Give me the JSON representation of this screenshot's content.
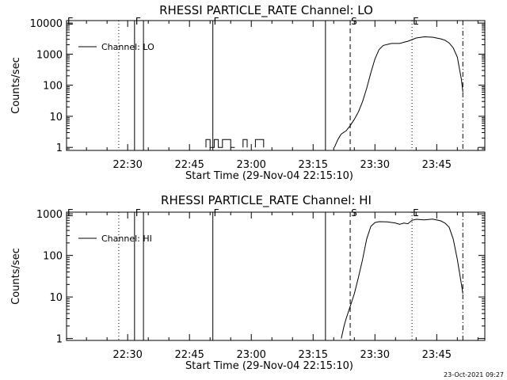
{
  "footer": "23-Oct-2021 09:27",
  "chart_data": [
    {
      "type": "line",
      "title": "RHESSI PARTICLE_RATE Channel: LO",
      "xlabel": "Start Time (29-Nov-04 22:15:10)",
      "ylabel": "Counts/sec",
      "yscale": "log",
      "ylim": [
        0.8,
        12000
      ],
      "xlim": [
        "22:15:10",
        "23:56:40"
      ],
      "x_ticks": [
        "22:30",
        "22:45",
        "23:00",
        "23:15",
        "23:30",
        "23:45"
      ],
      "y_ticks": [
        "1",
        "10",
        "100",
        "1000",
        "10000"
      ],
      "legend": {
        "label": "Channel: LO",
        "position": "top-left"
      },
      "markers": [
        {
          "label": "E",
          "time": "22:15:10",
          "style": "dotted"
        },
        {
          "label": "F",
          "time": "22:31:40",
          "style": "solid"
        },
        {
          "label": "F",
          "time": "22:50:40",
          "style": "solid"
        },
        {
          "label": "S",
          "time": "23:24:00",
          "style": "dashed"
        },
        {
          "label": "E",
          "time": "23:39:00",
          "style": "dotted"
        }
      ],
      "vlines": [
        {
          "time": "22:27:50",
          "style": "dotted"
        },
        {
          "time": "22:31:40",
          "style": "solid"
        },
        {
          "time": "22:33:50",
          "style": "solid"
        },
        {
          "time": "22:50:40",
          "style": "solid"
        },
        {
          "time": "23:18:00",
          "style": "solid"
        },
        {
          "time": "23:24:00",
          "style": "dashed"
        },
        {
          "time": "23:39:00",
          "style": "dotted"
        },
        {
          "time": "23:51:20",
          "style": "dashdot"
        }
      ],
      "series": [
        {
          "segments": [
            {
              "x": [
                "22:49:00",
                "22:49:00",
                "22:50:00",
                "22:50:00",
                "22:51:00",
                "22:51:00",
                "22:52:00",
                "22:52:00",
                "22:53:00",
                "22:53:00",
                "22:54:00",
                "22:54:00",
                "22:55:00",
                "22:55:00",
                "22:56:00",
                "22:56:00"
              ],
              "y": [
                1,
                1.8,
                1.8,
                1,
                1,
                1.8,
                1.8,
                1,
                1,
                1.8,
                1.8,
                1.8,
                1.8,
                1,
                1,
                1
              ]
            },
            {
              "x": [
                "22:58:00",
                "22:58:00",
                "22:59:00",
                "22:59:00"
              ],
              "y": [
                1,
                1.8,
                1.8,
                1
              ]
            },
            {
              "x": [
                "23:01:00",
                "23:01:00",
                "23:03:00",
                "23:03:00"
              ],
              "y": [
                1,
                1.8,
                1.8,
                1
              ]
            },
            {
              "x": [
                "23:20:10",
                "23:21:00",
                "23:21:00",
                "23:21:40",
                "23:22:00",
                "23:23:00",
                "23:24:00",
                "23:25:00",
                "23:26:00",
                "23:27:00",
                "23:28:00",
                "23:29:00",
                "23:30:00",
                "23:31:00",
                "23:32:00",
                "23:34:00",
                "23:36:00",
                "23:37:00",
                "23:38:00",
                "23:40:00",
                "23:42:00",
                "23:44:00",
                "23:46:00",
                "23:47:00",
                "23:48:00",
                "23:49:00",
                "23:50:00",
                "23:51:00",
                "23:51:20"
              ],
              "y": [
                1,
                1.8,
                1.8,
                2.5,
                2.8,
                3.4,
                5,
                8,
                14,
                30,
                80,
                250,
                700,
                1400,
                1900,
                2200,
                2200,
                2400,
                2600,
                3300,
                3600,
                3500,
                3100,
                2800,
                2300,
                1600,
                800,
                150,
                60
              ]
            }
          ]
        }
      ]
    },
    {
      "type": "line",
      "title": "RHESSI PARTICLE_RATE Channel: HI",
      "xlabel": "Start Time (29-Nov-04 22:15:10)",
      "ylabel": "Counts/sec",
      "yscale": "log",
      "ylim": [
        0.9,
        1100
      ],
      "xlim": [
        "22:15:10",
        "23:56:40"
      ],
      "x_ticks": [
        "22:30",
        "22:45",
        "23:00",
        "23:15",
        "23:30",
        "23:45"
      ],
      "y_ticks": [
        "1",
        "10",
        "100",
        "1000"
      ],
      "legend": {
        "label": "Channel: HI",
        "position": "top-left"
      },
      "markers": [
        {
          "label": "E",
          "time": "22:15:10",
          "style": "dotted"
        },
        {
          "label": "F",
          "time": "22:31:40",
          "style": "solid"
        },
        {
          "label": "F",
          "time": "22:50:40",
          "style": "solid"
        },
        {
          "label": "S",
          "time": "23:24:00",
          "style": "dashed"
        },
        {
          "label": "E",
          "time": "23:39:00",
          "style": "dotted"
        }
      ],
      "vlines": [
        {
          "time": "22:27:50",
          "style": "dotted"
        },
        {
          "time": "22:31:40",
          "style": "solid"
        },
        {
          "time": "22:33:50",
          "style": "solid"
        },
        {
          "time": "22:50:40",
          "style": "solid"
        },
        {
          "time": "23:18:00",
          "style": "solid"
        },
        {
          "time": "23:24:00",
          "style": "dashed"
        },
        {
          "time": "23:39:00",
          "style": "dotted"
        },
        {
          "time": "23:51:20",
          "style": "dashdot"
        }
      ],
      "series": [
        {
          "segments": [
            {
              "x": [
                "23:21:50",
                "23:22:30",
                "23:23:00",
                "23:24:00",
                "23:25:00",
                "23:26:00",
                "23:27:00",
                "23:28:00",
                "23:29:00",
                "23:30:00",
                "23:31:00",
                "23:33:00",
                "23:35:00",
                "23:36:00",
                "23:37:00",
                "23:38:00",
                "23:39:00",
                "23:40:00",
                "23:42:00",
                "23:44:00",
                "23:46:00",
                "23:47:00",
                "23:48:00",
                "23:49:00",
                "23:50:00",
                "23:51:00",
                "23:51:20"
              ],
              "y": [
                1,
                2,
                3,
                6,
                12,
                30,
                80,
                250,
                500,
                620,
                650,
                640,
                600,
                560,
                600,
                580,
                700,
                740,
                720,
                750,
                680,
                600,
                480,
                250,
                80,
                20,
                12
              ]
            }
          ]
        }
      ]
    }
  ]
}
